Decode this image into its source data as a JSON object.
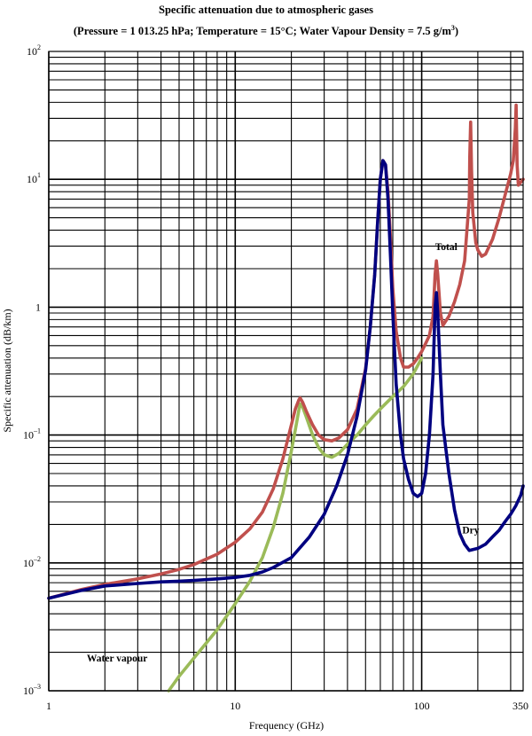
{
  "chart_data": {
    "type": "line",
    "title": "Specific attenuation due to atmospheric gases",
    "subtitle_parts": {
      "prefix": "(Pressure = 1 013.25 hPa; Temperature = 15°C; Water Vapour Density = 7.5 g/m",
      "superscript": "3",
      "suffix": ")"
    },
    "xlabel": "Frequency (GHz)",
    "ylabel": "Specific attenuation (dB/km)",
    "x_scale": "log",
    "y_scale": "log",
    "xlim": [
      1,
      350
    ],
    "ylim": [
      0.001,
      100
    ],
    "grid": true,
    "x_tick_labels": [
      {
        "value": 1,
        "label": "1"
      },
      {
        "value": 10,
        "label": "10"
      },
      {
        "value": 100,
        "label": "100"
      },
      {
        "value": 350,
        "label": "350"
      }
    ],
    "y_tick_labels": [
      {
        "value": 100,
        "base": "10",
        "exp": "2"
      },
      {
        "value": 10,
        "base": "10",
        "exp": "1"
      },
      {
        "value": 1,
        "base": "1",
        "exp": ""
      },
      {
        "value": 0.1,
        "base": "10",
        "exp": "–1"
      },
      {
        "value": 0.01,
        "base": "10",
        "exp": "–2"
      },
      {
        "value": 0.001,
        "base": "10",
        "exp": "–3"
      }
    ],
    "colors": {
      "Total": "#c0504d",
      "Dry": "#000080",
      "Water vapour": "#9bbb59"
    },
    "series": [
      {
        "name": "Total",
        "label_at": {
          "x": 118,
          "y": 2.8
        },
        "x": [
          1,
          1.5,
          2,
          3,
          4,
          5,
          6,
          8,
          10,
          12,
          14,
          16,
          18,
          20,
          21,
          22,
          22.3,
          23,
          24,
          26,
          28,
          30,
          33,
          36,
          40,
          45,
          50,
          53,
          56,
          58,
          60,
          62,
          64,
          66,
          68,
          70,
          73,
          77,
          80,
          85,
          90,
          95,
          100,
          105,
          110,
          115,
          118,
          120,
          122,
          126,
          130,
          140,
          150,
          160,
          170,
          180,
          181,
          183,
          185,
          188,
          195,
          200,
          210,
          220,
          240,
          260,
          280,
          300,
          310,
          318,
          321,
          323,
          325,
          330,
          340,
          350
        ],
        "y": [
          0.0053,
          0.0062,
          0.0068,
          0.0075,
          0.0082,
          0.0089,
          0.0097,
          0.0117,
          0.0145,
          0.0185,
          0.025,
          0.038,
          0.065,
          0.12,
          0.16,
          0.19,
          0.195,
          0.18,
          0.155,
          0.12,
          0.1,
          0.092,
          0.09,
          0.095,
          0.11,
          0.16,
          0.33,
          0.7,
          1.8,
          4.5,
          10,
          14,
          13,
          8,
          3.5,
          1.4,
          0.65,
          0.4,
          0.34,
          0.34,
          0.36,
          0.4,
          0.45,
          0.52,
          0.6,
          0.85,
          1.8,
          2.3,
          1.8,
          0.9,
          0.72,
          0.85,
          1.1,
          1.5,
          2.3,
          7,
          15,
          28,
          12,
          5.5,
          3.2,
          2.8,
          2.5,
          2.6,
          3.4,
          5,
          7.5,
          11,
          14,
          25,
          38,
          22,
          13,
          9,
          9.5,
          10
        ]
      },
      {
        "name": "Dry",
        "label_at": {
          "x": 165,
          "y": 0.017
        },
        "x": [
          1,
          1.5,
          2,
          3,
          4,
          5,
          6,
          8,
          10,
          12,
          14,
          16,
          20,
          25,
          30,
          35,
          40,
          45,
          50,
          53,
          56,
          58,
          60,
          62,
          64,
          66,
          68,
          70,
          73,
          77,
          80,
          85,
          90,
          95,
          100,
          105,
          110,
          115,
          118,
          120,
          122,
          126,
          130,
          140,
          150,
          160,
          170,
          180,
          200,
          220,
          240,
          260,
          280,
          300,
          320,
          340,
          350
        ],
        "y": [
          0.0053,
          0.0061,
          0.0066,
          0.0069,
          0.0071,
          0.0072,
          0.0073,
          0.0075,
          0.0077,
          0.008,
          0.0085,
          0.0092,
          0.011,
          0.016,
          0.024,
          0.04,
          0.07,
          0.14,
          0.32,
          0.7,
          1.8,
          4.5,
          10,
          14,
          13,
          7,
          2.5,
          0.9,
          0.25,
          0.1,
          0.065,
          0.045,
          0.035,
          0.033,
          0.035,
          0.05,
          0.1,
          0.3,
          1.0,
          1.3,
          0.9,
          0.3,
          0.12,
          0.05,
          0.026,
          0.017,
          0.014,
          0.0125,
          0.013,
          0.014,
          0.016,
          0.018,
          0.021,
          0.024,
          0.028,
          0.034,
          0.04
        ]
      },
      {
        "name": "Water vapour",
        "label_at": {
          "x": 1.6,
          "y": 0.0017
        },
        "x": [
          4.4,
          5,
          6,
          8,
          10,
          12,
          14,
          16,
          18,
          20,
          21,
          22,
          22.3,
          23,
          24,
          26,
          28,
          30,
          33,
          36,
          40,
          45,
          50,
          55,
          60,
          70,
          80,
          90,
          100
        ],
        "y": [
          0.001,
          0.0013,
          0.0018,
          0.003,
          0.0048,
          0.0072,
          0.011,
          0.019,
          0.035,
          0.075,
          0.11,
          0.16,
          0.175,
          0.165,
          0.14,
          0.1,
          0.08,
          0.07,
          0.067,
          0.072,
          0.085,
          0.1,
          0.12,
          0.14,
          0.16,
          0.2,
          0.24,
          0.3,
          0.4
        ]
      }
    ]
  }
}
